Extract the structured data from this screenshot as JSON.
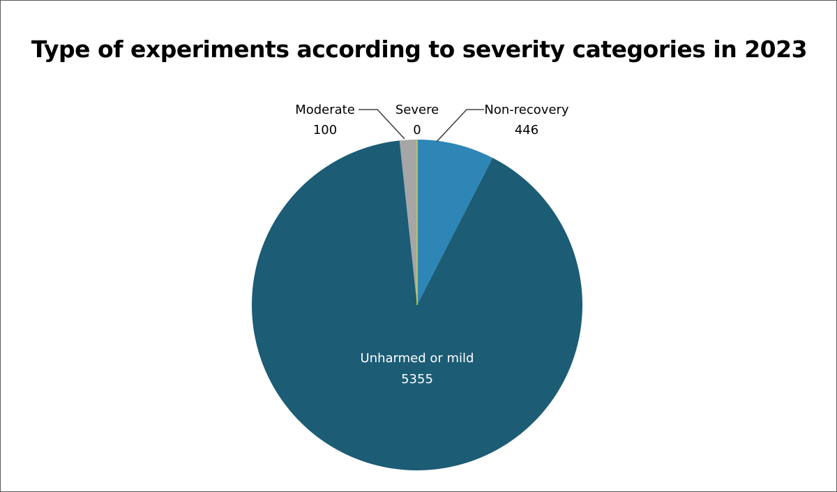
{
  "chart_data": {
    "type": "pie",
    "title": "Type of experiments according to severity categories in 2023",
    "slices": [
      {
        "name": "Non-recovery",
        "value": 446,
        "color": "#2e86b7"
      },
      {
        "name": "Unharmed or mild",
        "value": 5355,
        "color": "#1c5c75"
      },
      {
        "name": "Moderate",
        "value": 100,
        "color": "#a6a6a6"
      },
      {
        "name": "Severe",
        "value": 0,
        "color": "#c9d93a"
      }
    ],
    "start_angle_deg": 0,
    "direction": "clockwise"
  }
}
